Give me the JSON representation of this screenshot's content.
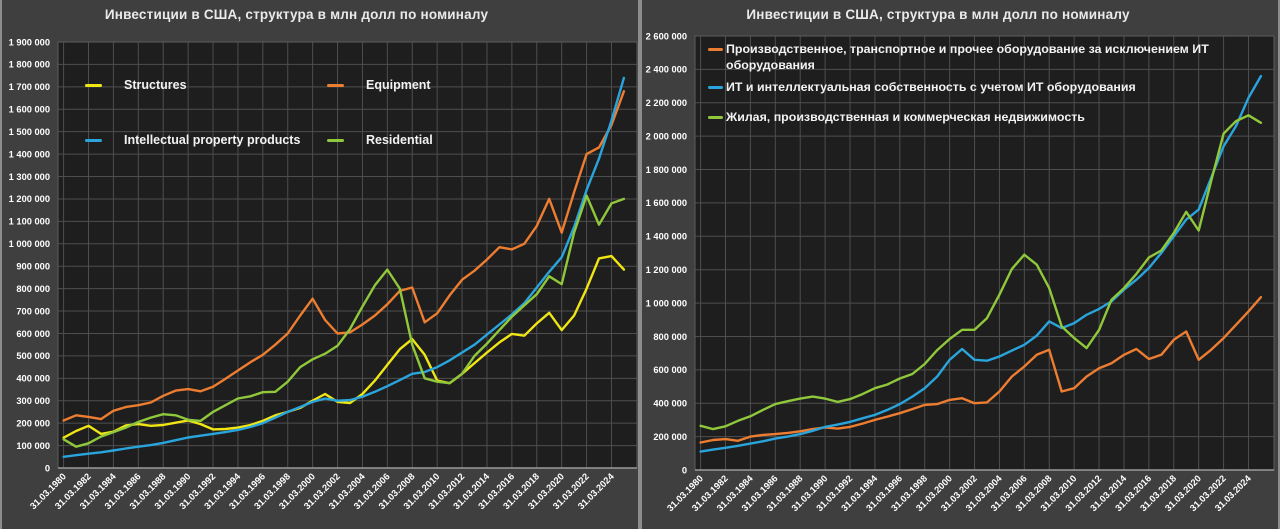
{
  "window": {
    "background": "#3f3f3f",
    "panel_divider": "#8d8d8d",
    "plot_background": "#1e1e1e",
    "grid_color": "#4e4e4e",
    "axis_line_color": "#9a9a9a",
    "tick_text_color": "#ffffff",
    "title_text_color": "#eaeaea",
    "legend_text_color": "#f2f2f2"
  },
  "chart_data": [
    {
      "type": "line",
      "panel": "left",
      "title": "Инвестиции в США, структура в млн долл по номиналу",
      "ylabel": "",
      "xlabel": "",
      "ylim": [
        0,
        1900000
      ],
      "ytick_step": 100000,
      "grid": true,
      "legend_position": "inside-top-left-two-columns",
      "x_tick_labels": [
        "31.03.1980",
        "31.03.1982",
        "31.03.1984",
        "31.03.1986",
        "31.03.1988",
        "31.03.1990",
        "31.03.1992",
        "31.03.1994",
        "31.03.1996",
        "31.03.1998",
        "31.03.2000",
        "31.03.2002",
        "31.03.2004",
        "31.03.2006",
        "31.03.2008",
        "31.03.2010",
        "31.03.2012",
        "31.03.2014",
        "31.03.2016",
        "31.03.2018",
        "31.03.2020",
        "31.03.2022",
        "31.03.2024"
      ],
      "x_years": [
        1980,
        1981,
        1982,
        1983,
        1984,
        1985,
        1986,
        1987,
        1988,
        1989,
        1990,
        1991,
        1992,
        1993,
        1994,
        1995,
        1996,
        1997,
        1998,
        1999,
        2000,
        2001,
        2002,
        2003,
        2004,
        2005,
        2006,
        2007,
        2008,
        2009,
        2010,
        2011,
        2012,
        2013,
        2014,
        2015,
        2016,
        2017,
        2018,
        2019,
        2020,
        2021,
        2022,
        2023,
        2024,
        2025
      ],
      "series": [
        {
          "name": "Structures",
          "color": "#f0e613",
          "values": [
            135000,
            165000,
            188000,
            152000,
            162000,
            190000,
            196000,
            188000,
            192000,
            202000,
            212000,
            196000,
            172000,
            174000,
            180000,
            192000,
            210000,
            235000,
            250000,
            268000,
            300000,
            330000,
            295000,
            290000,
            330000,
            390000,
            460000,
            530000,
            575000,
            505000,
            390000,
            378000,
            420000,
            468000,
            515000,
            560000,
            598000,
            590000,
            645000,
            692000,
            615000,
            680000,
            800000,
            935000,
            945000,
            885000
          ]
        },
        {
          "name": "Equipment",
          "color": "#ed7d31",
          "values": [
            212000,
            235000,
            228000,
            218000,
            255000,
            272000,
            280000,
            292000,
            322000,
            345000,
            352000,
            342000,
            362000,
            398000,
            435000,
            472000,
            505000,
            550000,
            600000,
            680000,
            755000,
            660000,
            600000,
            605000,
            640000,
            680000,
            730000,
            790000,
            805000,
            650000,
            690000,
            770000,
            840000,
            880000,
            930000,
            985000,
            975000,
            1000000,
            1080000,
            1200000,
            1050000,
            1230000,
            1400000,
            1430000,
            1530000,
            1680000
          ]
        },
        {
          "name": "Intellectual property products",
          "color": "#2aa4dc",
          "values": [
            50000,
            57000,
            64000,
            70000,
            78000,
            87000,
            95000,
            102000,
            112000,
            124000,
            136000,
            144000,
            152000,
            160000,
            170000,
            183000,
            200000,
            225000,
            250000,
            272000,
            295000,
            310000,
            300000,
            303000,
            318000,
            340000,
            365000,
            392000,
            420000,
            428000,
            450000,
            480000,
            515000,
            550000,
            595000,
            640000,
            685000,
            735000,
            805000,
            875000,
            940000,
            1075000,
            1240000,
            1380000,
            1550000,
            1740000
          ]
        },
        {
          "name": "Residential",
          "color": "#90c83c",
          "values": [
            128000,
            95000,
            110000,
            140000,
            160000,
            180000,
            205000,
            225000,
            240000,
            235000,
            215000,
            210000,
            250000,
            280000,
            310000,
            320000,
            338000,
            340000,
            385000,
            450000,
            485000,
            510000,
            545000,
            620000,
            720000,
            815000,
            885000,
            800000,
            550000,
            400000,
            385000,
            378000,
            420000,
            500000,
            555000,
            615000,
            675000,
            725000,
            775000,
            855000,
            820000,
            1050000,
            1215000,
            1085000,
            1180000,
            1200000
          ]
        }
      ]
    },
    {
      "type": "line",
      "panel": "right",
      "title": "Инвестиции в США, структура в млн долл по номиналу",
      "ylabel": "",
      "xlabel": "",
      "ylim": [
        0,
        2600000
      ],
      "ytick_step": 200000,
      "grid": true,
      "legend_position": "inside-top-left-list",
      "x_tick_labels": [
        "31.03.1980",
        "31.03.1982",
        "31.03.1984",
        "31.03.1986",
        "31.03.1988",
        "31.03.1990",
        "31.03.1992",
        "31.03.1994",
        "31.03.1996",
        "31.03.1998",
        "31.03.2000",
        "31.03.2002",
        "31.03.2004",
        "31.03.2006",
        "31.03.2008",
        "31.03.2010",
        "31.03.2012",
        "31.03.2014",
        "31.03.2016",
        "31.03.2018",
        "31.03.2020",
        "31.03.2022",
        "31.03.2024"
      ],
      "x_years": [
        1980,
        1981,
        1982,
        1983,
        1984,
        1985,
        1986,
        1987,
        1988,
        1989,
        1990,
        1991,
        1992,
        1993,
        1994,
        1995,
        1996,
        1997,
        1998,
        1999,
        2000,
        2001,
        2002,
        2003,
        2004,
        2005,
        2006,
        2007,
        2008,
        2009,
        2010,
        2011,
        2012,
        2013,
        2014,
        2015,
        2016,
        2017,
        2018,
        2019,
        2020,
        2021,
        2022,
        2023,
        2024,
        2025
      ],
      "series": [
        {
          "name": "Производственное, транспортное и прочее оборудование за исключением ИТ оборудования",
          "color": "#ed7d31",
          "values": [
            165000,
            180000,
            185000,
            175000,
            200000,
            210000,
            215000,
            222000,
            232000,
            245000,
            255000,
            248000,
            258000,
            278000,
            300000,
            320000,
            340000,
            365000,
            390000,
            395000,
            420000,
            430000,
            400000,
            405000,
            470000,
            560000,
            620000,
            690000,
            720000,
            470000,
            490000,
            560000,
            610000,
            640000,
            690000,
            725000,
            665000,
            690000,
            780000,
            830000,
            660000,
            720000,
            790000,
            870000,
            950000,
            1035000
          ]
        },
        {
          "name": "ИТ и интеллектуальная собственность с учетом ИТ оборудования",
          "color": "#2aa4dc",
          "values": [
            110000,
            122000,
            133000,
            145000,
            158000,
            172000,
            188000,
            200000,
            215000,
            235000,
            258000,
            272000,
            288000,
            310000,
            330000,
            360000,
            395000,
            440000,
            490000,
            560000,
            660000,
            725000,
            660000,
            655000,
            680000,
            715000,
            750000,
            805000,
            890000,
            850000,
            880000,
            930000,
            965000,
            1010000,
            1080000,
            1140000,
            1210000,
            1300000,
            1400000,
            1500000,
            1560000,
            1750000,
            1940000,
            2060000,
            2230000,
            2360000
          ]
        },
        {
          "name": "Жилая, производственная и коммерческая недвижимость",
          "color": "#90c83c",
          "values": [
            265000,
            245000,
            262000,
            295000,
            322000,
            360000,
            395000,
            412000,
            428000,
            440000,
            428000,
            408000,
            425000,
            455000,
            490000,
            512000,
            548000,
            575000,
            635000,
            718000,
            785000,
            840000,
            840000,
            910000,
            1050000,
            1205000,
            1290000,
            1230000,
            1090000,
            860000,
            790000,
            730000,
            840000,
            1020000,
            1090000,
            1175000,
            1273000,
            1315000,
            1420000,
            1547000,
            1435000,
            1730000,
            2015000,
            2090000,
            2125000,
            2080000
          ]
        }
      ]
    }
  ]
}
